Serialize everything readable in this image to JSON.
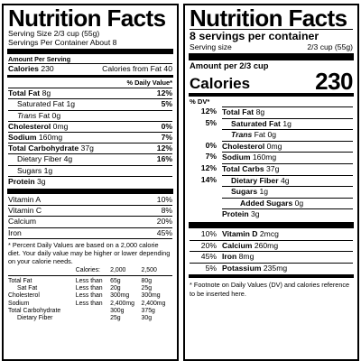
{
  "left": {
    "title": "Nutrition Facts",
    "serving_size": "Serving Size 2/3 cup (55g)",
    "servings_per_container": "Servings Per Container About 8",
    "amount_per_serving": "Amount Per Serving",
    "calories_label": "Calories",
    "calories_value": "230",
    "calories_from_fat": "Calories from Fat 40",
    "daily_value_header": "% Daily Value*",
    "nutrients": [
      {
        "name": "Total Fat",
        "amount": "8g",
        "dv": "12%"
      },
      {
        "name": "Saturated Fat",
        "amount": "1g",
        "dv": "5%"
      },
      {
        "name": "Trans",
        "suffix": "Fat 0g",
        "dv": ""
      },
      {
        "name": "Cholesterol",
        "amount": "0mg",
        "dv": "0%"
      },
      {
        "name": "Sodium",
        "amount": "160mg",
        "dv": "7%"
      },
      {
        "name": "Total Carbohydrate",
        "amount": "37g",
        "dv": "12%"
      },
      {
        "name": "Dietary Fiber",
        "amount": "4g",
        "dv": "16%"
      },
      {
        "name": "Sugars",
        "amount": "1g",
        "dv": ""
      },
      {
        "name": "Protein",
        "amount": "3g",
        "dv": ""
      }
    ],
    "vitamins": [
      {
        "name": "Vitamin A",
        "dv": "10%"
      },
      {
        "name": "Vitamin C",
        "dv": "8%"
      },
      {
        "name": "Calcium",
        "dv": "20%"
      },
      {
        "name": "Iron",
        "dv": "45%"
      }
    ],
    "footnote": "* Percent Daily Values are based on a 2,000 calorie diet. Your daily value may be higher or lower depending on your calorie needs.",
    "reference_table": {
      "header": [
        "",
        "Calories:",
        "2,000",
        "2,500"
      ],
      "rows": [
        [
          "Total Fat",
          "Less than",
          "65g",
          "80g"
        ],
        [
          "Sat Fat",
          "Less than",
          "20g",
          "25g"
        ],
        [
          "Cholesterol",
          "Less than",
          "300mg",
          "300mg"
        ],
        [
          "Sodium",
          "Less than",
          "2,400mg",
          "2,400mg"
        ],
        [
          "Total Carbohydrate",
          "",
          "300g",
          "375g"
        ],
        [
          "Dietary Fiber",
          "",
          "25g",
          "30g"
        ]
      ]
    }
  },
  "right": {
    "title": "Nutrition Facts",
    "servings": "8 servings per container",
    "serving_size_label": "Serving size",
    "serving_size_value": "2/3 cup (55g)",
    "amount_per": "Amount per 2/3 cup",
    "calories_label": "Calories",
    "calories_value": "230",
    "dv_header": "% DV*",
    "nutrients": [
      {
        "dv": "12%",
        "name": "Total Fat",
        "amount": "8g"
      },
      {
        "dv": "5%",
        "name": "Saturated Fat",
        "amount": "1g"
      },
      {
        "dv": "",
        "name": "Trans",
        "amount": "Fat 0g"
      },
      {
        "dv": "0%",
        "name": "Cholesterol",
        "amount": "0mg"
      },
      {
        "dv": "7%",
        "name": "Sodium",
        "amount": "160mg"
      },
      {
        "dv": "12%",
        "name": "Total Carbs",
        "amount": "37g"
      },
      {
        "dv": "14%",
        "name": "Dietary Fiber",
        "amount": "4g"
      },
      {
        "dv": "",
        "name": "Sugars",
        "amount": "1g"
      },
      {
        "dv": "",
        "name": "Added Sugars",
        "amount": "0g"
      },
      {
        "dv": "",
        "name": "Protein",
        "amount": "3g"
      }
    ],
    "vitamins": [
      {
        "dv": "10%",
        "name": "Vitamin D",
        "amount": "2mcg"
      },
      {
        "dv": "20%",
        "name": "Calcium",
        "amount": "260mg"
      },
      {
        "dv": "45%",
        "name": "Iron",
        "amount": "8mg"
      },
      {
        "dv": "5%",
        "name": "Potassium",
        "amount": "235mg"
      }
    ],
    "footnote": "* Footnote on Daily Values (DV) and calories reference to be inserted here."
  }
}
